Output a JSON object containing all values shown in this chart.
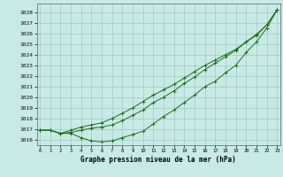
{
  "xlabel": "Graphe pression niveau de la mer (hPa)",
  "background_color": "#c8eae6",
  "grid_color": "#a0c8c4",
  "line_color": "#1a6e1a",
  "ylim": [
    1015.5,
    1028.8
  ],
  "xlim": [
    -0.3,
    23.3
  ],
  "yticks": [
    1016,
    1017,
    1018,
    1019,
    1020,
    1021,
    1022,
    1023,
    1024,
    1025,
    1026,
    1027,
    1028
  ],
  "xticks": [
    0,
    1,
    2,
    3,
    4,
    5,
    6,
    7,
    8,
    9,
    10,
    11,
    12,
    13,
    14,
    15,
    16,
    17,
    18,
    19,
    20,
    21,
    22,
    23
  ],
  "series": [
    [
      1016.9,
      1016.9,
      1016.6,
      1016.6,
      1016.2,
      1015.9,
      1015.8,
      1015.9,
      1016.2,
      1016.5,
      1016.8,
      1017.5,
      1018.2,
      1018.8,
      1019.5,
      1020.2,
      1021.0,
      1021.5,
      1022.3,
      1023.0,
      1024.2,
      1025.2,
      1026.5,
      1028.2
    ],
    [
      1016.9,
      1016.9,
      1016.6,
      1016.7,
      1016.9,
      1017.1,
      1017.2,
      1017.4,
      1017.8,
      1018.3,
      1018.8,
      1019.5,
      1020.0,
      1020.6,
      1021.3,
      1021.9,
      1022.6,
      1023.2,
      1023.8,
      1024.4,
      1025.2,
      1025.8,
      1026.8,
      1028.2
    ],
    [
      1016.9,
      1016.9,
      1016.6,
      1016.9,
      1017.2,
      1017.4,
      1017.6,
      1018.0,
      1018.5,
      1019.0,
      1019.6,
      1020.2,
      1020.7,
      1021.2,
      1021.8,
      1022.4,
      1023.0,
      1023.5,
      1024.0,
      1024.5,
      1025.2,
      1025.9,
      1026.8,
      1028.2
    ]
  ]
}
